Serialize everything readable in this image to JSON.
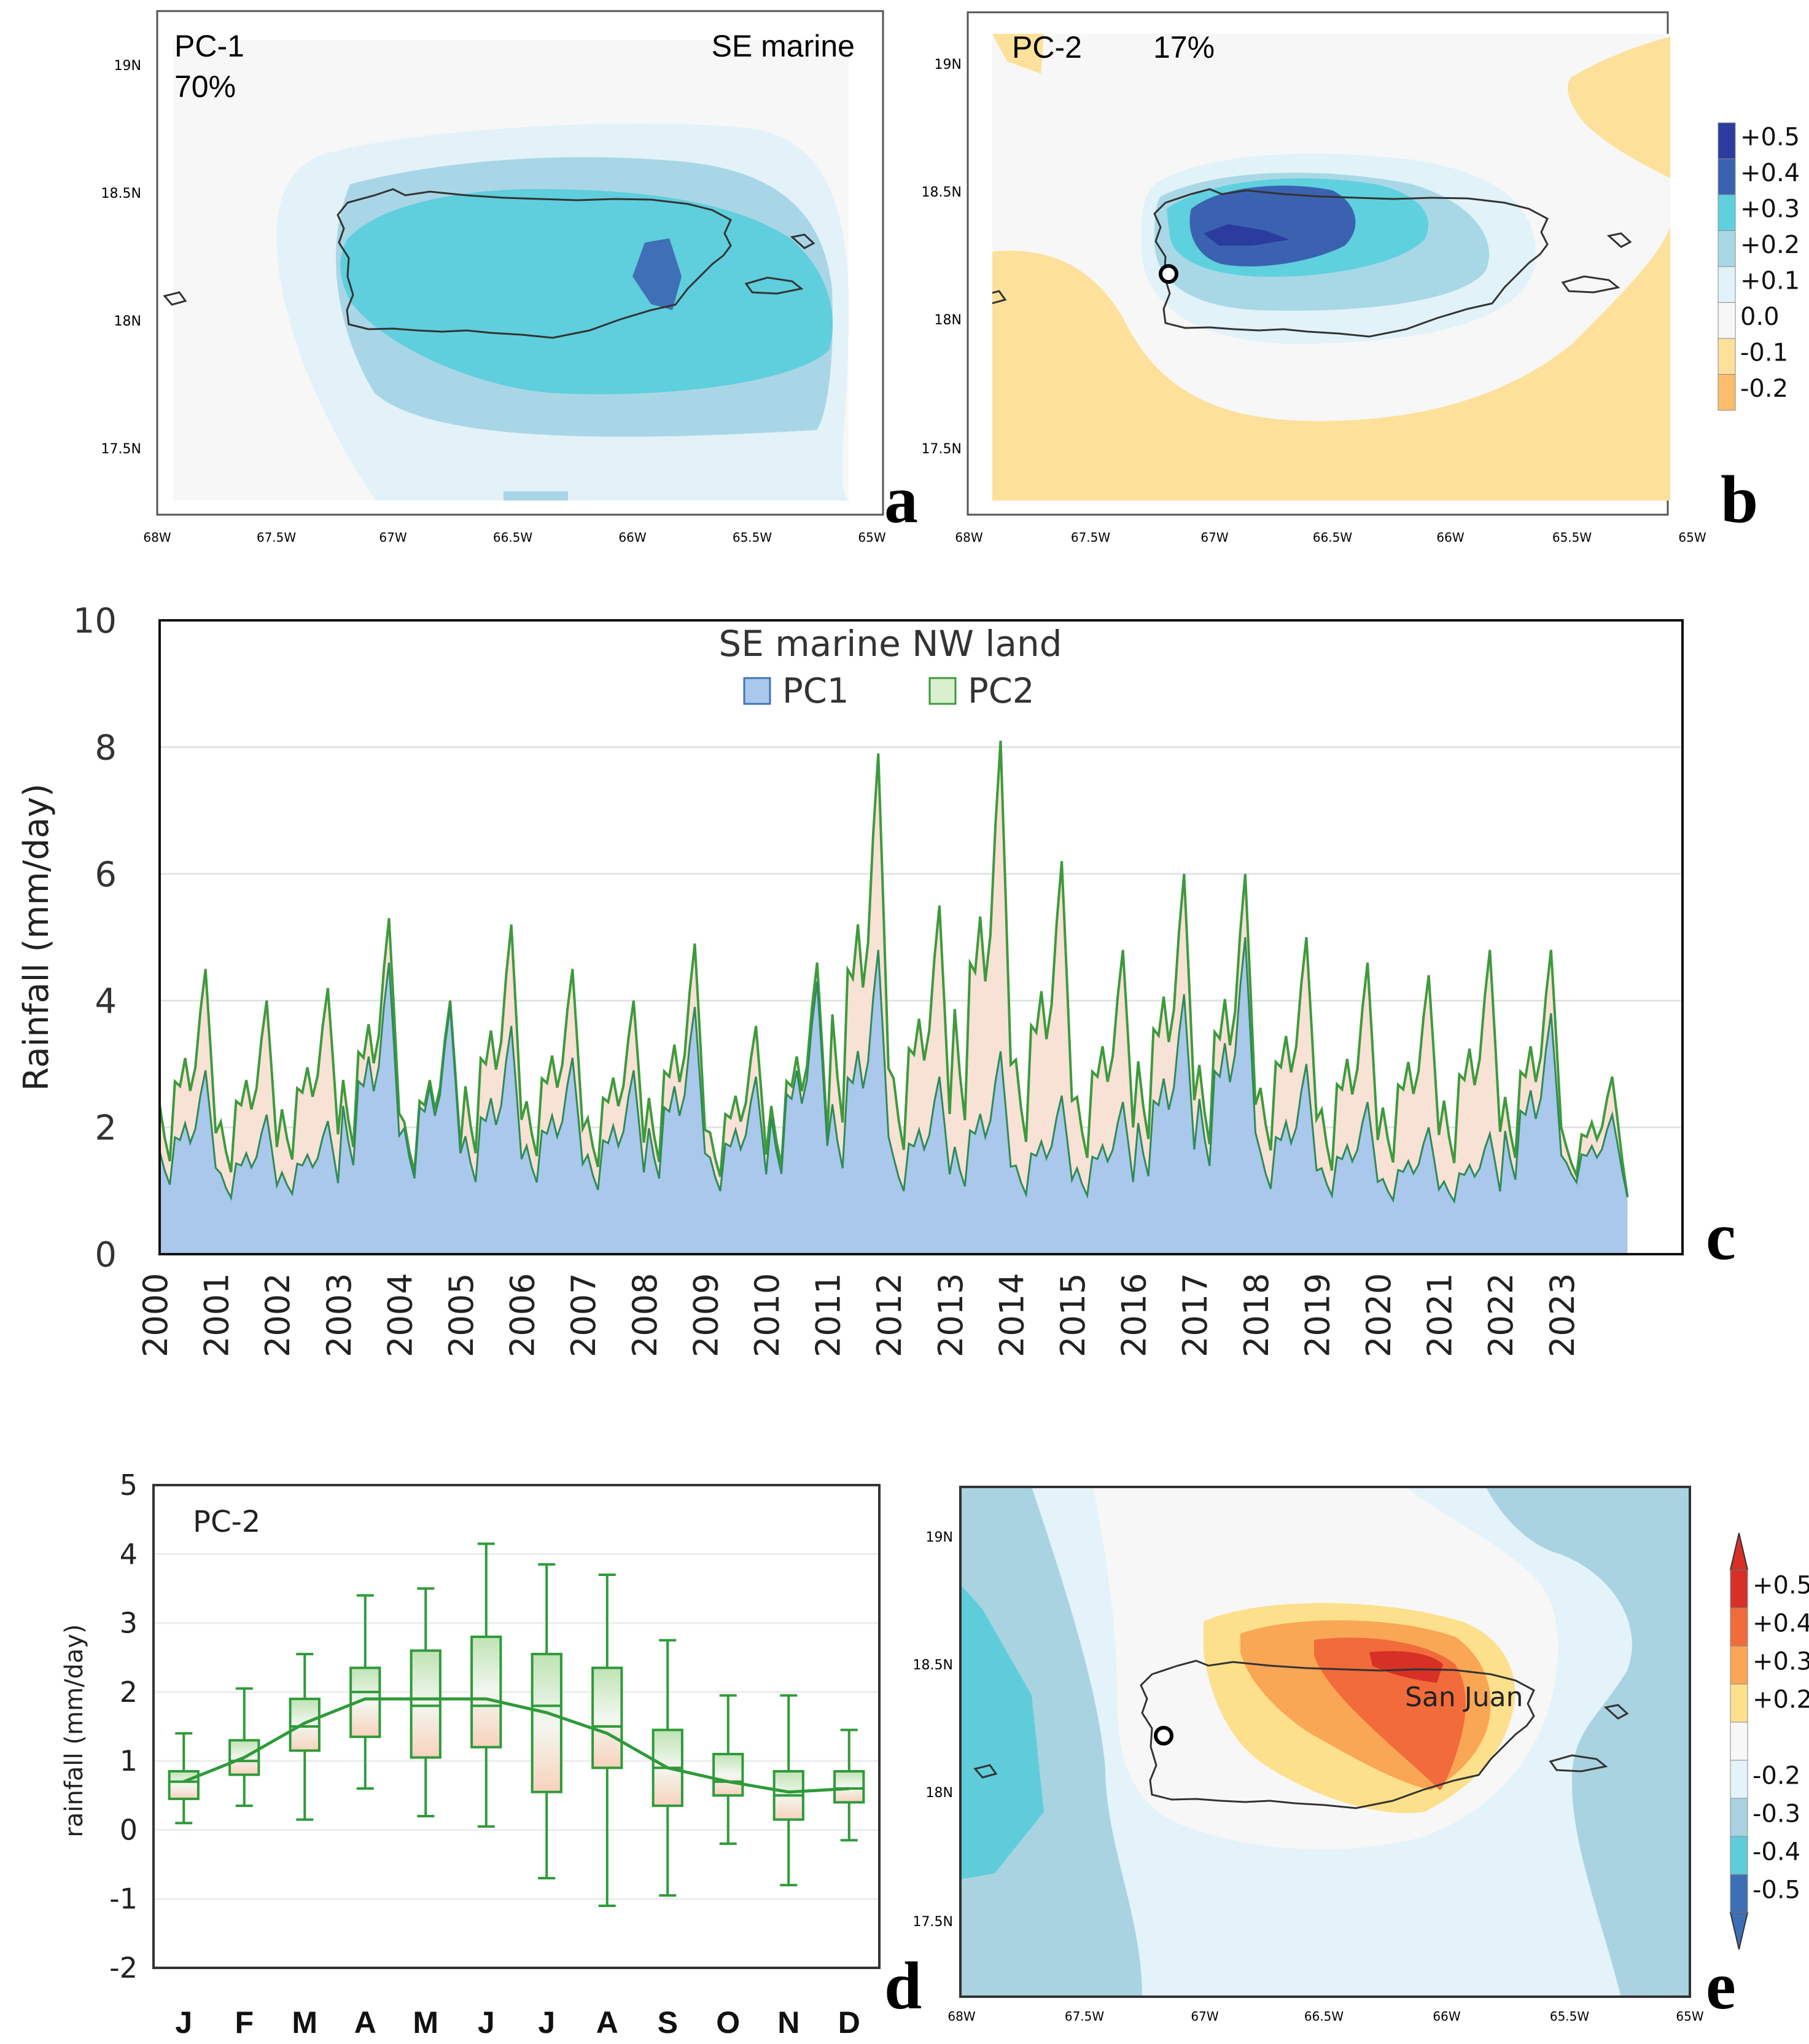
{
  "panels": {
    "a": {
      "letter": "a",
      "pc_label": "PC-1",
      "variance": "70%",
      "region": "SE marine",
      "lat_ticks": [
        "19N",
        "18.5N",
        "18N",
        "17.5N"
      ],
      "lon_ticks": [
        "68W",
        "67.5W",
        "67W",
        "66.5W",
        "66W",
        "65.5W",
        "65W"
      ]
    },
    "b": {
      "letter": "b",
      "pc_label": "PC-2",
      "variance": "17%",
      "lat_ticks": [
        "19N",
        "18.5N",
        "18N",
        "17.5N"
      ],
      "lon_ticks": [
        "68W",
        "67.5W",
        "67W",
        "66.5W",
        "66W",
        "65.5W",
        "65W"
      ],
      "colorbar": [
        "+0.5",
        "+0.4",
        "+0.3",
        "+0.2",
        "+0.1",
        "0.0",
        "-0.1",
        "-0.2"
      ],
      "colorbar_colors": [
        "#2b3c9e",
        "#3b62b0",
        "#5fd0de",
        "#a8d8e6",
        "#e1f2f8",
        "#f7f7f7",
        "#fde19a",
        "#fbbd6c"
      ]
    },
    "e": {
      "letter": "e",
      "city_label": "San Juan",
      "lat_ticks": [
        "19N",
        "18.5N",
        "18N",
        "17.5N"
      ],
      "lon_ticks": [
        "68W",
        "67.5W",
        "67W",
        "66.5W",
        "66W",
        "65.5W",
        "65W"
      ],
      "colorbar": [
        "+0.5",
        "+0.4",
        "+0.3",
        "+0.2",
        "",
        "-0.2",
        "-0.3",
        "-0.4",
        "-0.5"
      ],
      "colorbar_colors": [
        "#d73027",
        "#f26b3a",
        "#f9a655",
        "#fde08c",
        "#f7f7f7",
        "#e3f3f9",
        "#a9d3e1",
        "#5fcdd9",
        "#3d6fb6"
      ]
    }
  },
  "chart_data": [
    {
      "panel": "c",
      "letter": "c",
      "type": "area",
      "title": "",
      "legend_title": "SE marine  NW land",
      "legend": [
        "PC1",
        "PC2"
      ],
      "legend_placement": "top-center",
      "ylabel": "Rainfall (mm/day)",
      "xlabel": "",
      "ylim": [
        0,
        10
      ],
      "yticks": [
        "0",
        "2",
        "4",
        "6",
        "8",
        "10"
      ],
      "xticks": [
        "2000",
        "2001",
        "2002",
        "2003",
        "2004",
        "2005",
        "2006",
        "2007",
        "2008",
        "2009",
        "2010",
        "2011",
        "2012",
        "2013",
        "2014",
        "2015",
        "2016",
        "2017",
        "2018",
        "2019",
        "2020",
        "2021",
        "2022",
        "2023"
      ],
      "years": [
        2000,
        2001,
        2002,
        2003,
        2004,
        2005,
        2006,
        2007,
        2008,
        2009,
        2010,
        2011,
        2012,
        2013,
        2014,
        2015,
        2016,
        2017,
        2018,
        2019,
        2020,
        2021,
        2022,
        2023
      ],
      "series": [
        {
          "name": "PC1",
          "color": "#a9c8eb",
          "annual_peak": [
            2.9,
            2.2,
            2.1,
            4.6,
            3.9,
            3.6,
            3.1,
            2.9,
            3.9,
            2.8,
            4.3,
            4.8,
            2.8,
            3.2,
            2.5,
            2.4,
            4.1,
            5.0,
            3.0,
            2.4,
            2.0,
            1.9,
            3.8,
            2.2
          ],
          "annual_min": [
            0.7,
            0.6,
            0.7,
            0.7,
            0.6,
            0.6,
            0.7,
            0.6,
            0.6,
            0.6,
            0.6,
            0.6,
            0.6,
            0.6,
            0.6,
            0.6,
            0.6,
            0.6,
            0.6,
            0.6,
            0.6,
            0.6,
            0.6,
            0.9
          ]
        },
        {
          "name": "PC2",
          "color": "#c9e5b9",
          "annual_peak": [
            4.5,
            4.0,
            4.2,
            5.3,
            4.0,
            5.2,
            4.5,
            4.0,
            4.9,
            3.6,
            4.6,
            7.9,
            5.5,
            8.1,
            6.2,
            4.8,
            6.0,
            6.0,
            5.0,
            4.6,
            4.4,
            4.8,
            4.8,
            2.8
          ],
          "annual_min": [
            0.8,
            0.7,
            0.9,
            0.9,
            0.7,
            0.8,
            0.9,
            0.8,
            0.7,
            0.7,
            0.7,
            0.8,
            0.8,
            0.8,
            0.8,
            0.8,
            0.9,
            0.8,
            0.9,
            0.6,
            0.8,
            0.7,
            0.8,
            0.9
          ]
        }
      ]
    },
    {
      "panel": "d",
      "letter": "d",
      "type": "box",
      "title": "PC-2",
      "ylabel": "rainfall (mm/day)",
      "xlabel": "",
      "ylim": [
        -2,
        5
      ],
      "yticks": [
        "5",
        "4",
        "3",
        "2",
        "1",
        "0",
        "-1",
        "-2"
      ],
      "categories": [
        "J",
        "F",
        "M",
        "A",
        "M",
        "J",
        "J",
        "A",
        "S",
        "O",
        "N",
        "D"
      ],
      "q1": [
        0.45,
        0.8,
        1.15,
        1.35,
        1.05,
        1.2,
        0.55,
        0.9,
        0.35,
        0.5,
        0.15,
        0.4
      ],
      "median": [
        0.7,
        1.0,
        1.5,
        2.0,
        1.8,
        1.8,
        1.8,
        1.5,
        0.9,
        0.7,
        0.5,
        0.6
      ],
      "q3": [
        0.85,
        1.3,
        1.9,
        2.35,
        2.6,
        2.8,
        2.55,
        2.35,
        1.45,
        1.1,
        0.85,
        0.85
      ],
      "whisker_low": [
        0.1,
        0.35,
        0.15,
        0.6,
        0.2,
        0.05,
        -0.7,
        -1.1,
        -0.95,
        -0.2,
        -0.8,
        -0.15
      ],
      "whisker_high": [
        1.4,
        2.05,
        2.55,
        3.4,
        3.5,
        4.15,
        3.85,
        3.7,
        2.75,
        1.95,
        1.95,
        1.45
      ],
      "mean_line": [
        0.7,
        1.05,
        1.55,
        1.9,
        1.9,
        1.9,
        1.7,
        1.4,
        0.9,
        0.7,
        0.55,
        0.6
      ]
    }
  ]
}
